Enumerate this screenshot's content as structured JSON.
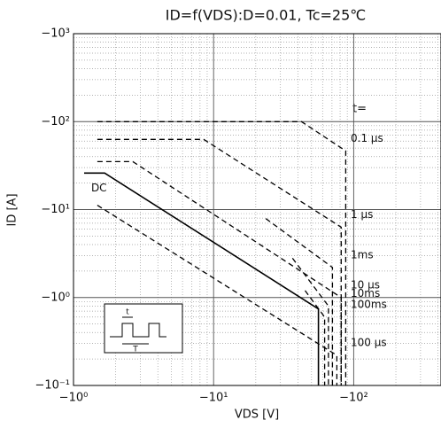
{
  "chart_data": {
    "type": "line",
    "title": "ID=f(VDS):D=0.01, Tc=25℃",
    "xlabel": "VDS [V]",
    "ylabel": "ID [A]",
    "log": true,
    "grid": true,
    "xlim": [
      -1,
      -420
    ],
    "ylim": [
      -0.1,
      -1000
    ],
    "xticks": [
      {
        "value": -1,
        "label": "−10⁰"
      },
      {
        "value": -10,
        "label": "−10¹"
      },
      {
        "value": -100,
        "label": "−10²"
      }
    ],
    "yticks": [
      {
        "value": -0.1,
        "label": "−10⁻¹"
      },
      {
        "value": -1,
        "label": "−10⁰"
      },
      {
        "value": -10,
        "label": "−10¹"
      },
      {
        "value": -100,
        "label": "−10²"
      },
      {
        "value": -1000,
        "label": "−10³"
      }
    ],
    "annotation": "t=",
    "inset_labels": [
      "t",
      "T"
    ],
    "series": [
      {
        "name": "DC",
        "color": "#000",
        "dash": false,
        "x": [
          -1.19,
          -1.67,
          -56,
          -56
        ],
        "values": [
          -26,
          -26,
          -0.74,
          -0.1
        ]
      },
      {
        "name": "0.1 μs",
        "color": "#000",
        "dash": true,
        "x": [
          -1.48,
          -42.4,
          -87.7,
          -87.7
        ],
        "values": [
          -100,
          -100,
          -46.4,
          -0.1
        ]
      },
      {
        "name": "1 μs",
        "color": "#000",
        "dash": true,
        "x": [
          -1.48,
          -8.5,
          -81.5,
          -81.5
        ],
        "values": [
          -62.8,
          -62.8,
          -6.3,
          -0.1
        ]
      },
      {
        "name": "10 μs",
        "color": "#000",
        "dash": true,
        "x": [
          -1.48,
          -2.65,
          -81.5,
          -81.5
        ],
        "values": [
          -35.1,
          -35.1,
          -1.0,
          -0.1
        ]
      },
      {
        "name": "100 μs",
        "color": "#000",
        "dash": true,
        "x": [
          -1.48,
          -75.8,
          -75.8
        ],
        "values": [
          -11.2,
          -0.22,
          -0.1
        ]
      },
      {
        "name": "1ms",
        "color": "#000",
        "dash": true,
        "x": [
          -23.6,
          -70.5,
          -70.5
        ],
        "values": [
          -7.9,
          -2.2,
          -0.1
        ]
      },
      {
        "name": "10ms",
        "color": "#000",
        "dash": true,
        "x": [
          -36.6,
          -66,
          -66
        ],
        "values": [
          -2.8,
          -0.8,
          -0.1
        ]
      },
      {
        "name": "100ms",
        "color": "#000",
        "dash": true,
        "x": [
          -45,
          -62,
          -62
        ],
        "values": [
          -1.2,
          -0.6,
          -0.1
        ]
      }
    ]
  }
}
